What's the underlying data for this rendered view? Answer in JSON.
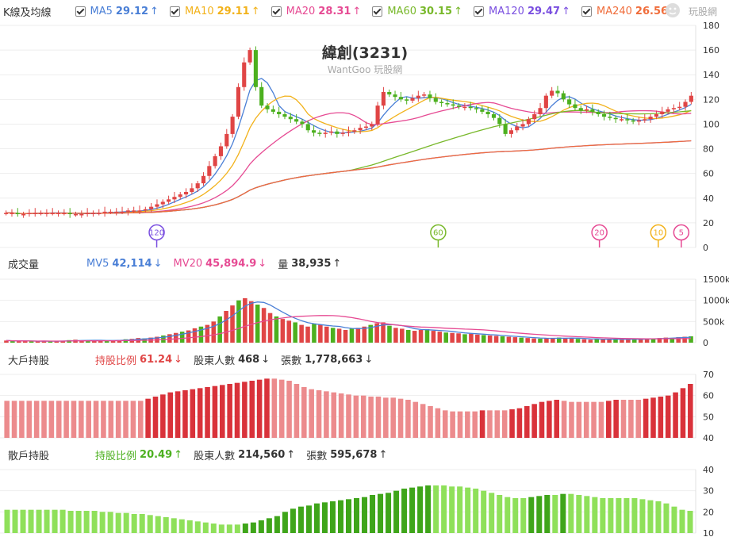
{
  "kline": {
    "label": "K線及均線",
    "ma": [
      {
        "name": "MA5",
        "value": "29.12",
        "arrow": "↑",
        "color": "#4a7fd6"
      },
      {
        "name": "MA10",
        "value": "29.11",
        "arrow": "↑",
        "color": "#f2b21b"
      },
      {
        "name": "MA20",
        "value": "28.31",
        "arrow": "↑",
        "color": "#e64a93"
      },
      {
        "name": "MA60",
        "value": "30.15",
        "arrow": "↑",
        "color": "#78b82a"
      },
      {
        "name": "MA120",
        "value": "29.47",
        "arrow": "↑",
        "color": "#7a4fe0"
      },
      {
        "name": "MA240",
        "value": "26.56",
        "arrow": "↑",
        "color": "#f06d3b"
      }
    ]
  },
  "logo_text": "玩股網",
  "volume": {
    "label": "成交量",
    "items": [
      {
        "name": "MV5",
        "value": "42,114",
        "arrow": "↓",
        "color": "#4a7fd6"
      },
      {
        "name": "MV20",
        "value": "45,894.9",
        "arrow": "↓",
        "color": "#e64a93"
      },
      {
        "name": "量",
        "value": "38,935",
        "arrow": "↑",
        "color": "#333333"
      }
    ]
  },
  "big": {
    "label": "大戶持股",
    "items": [
      {
        "name": "持股比例",
        "value": "61.24",
        "arrow": "↓",
        "color": "#e04545"
      },
      {
        "name": "股東人數",
        "value": "468",
        "arrow": "↓",
        "color": "#333333"
      },
      {
        "name": "張數",
        "value": "1,778,663",
        "arrow": "↓",
        "color": "#333333"
      }
    ]
  },
  "small": {
    "label": "散戶持股",
    "items": [
      {
        "name": "持股比例",
        "value": "20.49",
        "arrow": "↑",
        "color": "#4cb01f"
      },
      {
        "name": "股東人數",
        "value": "214,560",
        "arrow": "↑",
        "color": "#333333"
      },
      {
        "name": "張數",
        "value": "595,678",
        "arrow": "↑",
        "color": "#333333"
      }
    ]
  },
  "chart_data": [
    {
      "type": "candlestick",
      "title": "緯創(3231)",
      "subtitle": "WantGoo 玩股網",
      "ylim": [
        0,
        180
      ],
      "yticks": [
        "0",
        "20",
        "40",
        "60",
        "80",
        "100",
        "120",
        "140",
        "160",
        "180"
      ],
      "close_series": [
        28,
        28,
        27,
        27,
        28,
        28,
        28,
        28,
        28,
        28,
        28,
        27,
        27,
        27,
        28,
        28,
        28,
        29,
        29,
        29,
        29,
        30,
        30,
        30,
        31,
        33,
        35,
        37,
        39,
        41,
        43,
        45,
        48,
        52,
        58,
        66,
        74,
        82,
        92,
        106,
        130,
        150,
        160,
        130,
        115,
        112,
        110,
        108,
        106,
        104,
        102,
        100,
        95,
        93,
        92,
        93,
        94,
        92,
        93,
        94,
        95,
        97,
        98,
        100,
        115,
        126,
        124,
        122,
        120,
        119,
        121,
        123,
        124,
        121,
        118,
        117,
        116,
        115,
        114,
        114,
        113,
        112,
        110,
        108,
        105,
        100,
        92,
        95,
        98,
        100,
        104,
        108,
        113,
        123,
        127,
        125,
        120,
        116,
        113,
        111,
        112,
        110,
        108,
        106,
        105,
        104,
        104,
        103,
        102,
        103,
        104,
        106,
        108,
        110,
        112,
        113,
        114,
        118,
        123
      ],
      "markers": [
        {
          "label": "120",
          "color": "#7a4fe0",
          "index": 60
        },
        {
          "label": "60",
          "color": "#78b82a",
          "index": 170
        },
        {
          "label": "20",
          "color": "#e64a93",
          "index": 233
        },
        {
          "label": "10",
          "color": "#f2b21b",
          "index": 256
        },
        {
          "label": "5",
          "color": "#e64a93",
          "index": 265
        }
      ]
    },
    {
      "type": "bar",
      "name": "volume",
      "ylim": [
        0,
        1500000
      ],
      "yticks": [
        "0",
        "500k",
        "1000k",
        "1500k"
      ],
      "values": [
        50,
        40,
        35,
        40,
        30,
        35,
        45,
        30,
        40,
        35,
        60,
        70,
        50,
        45,
        55,
        60,
        45,
        50,
        65,
        80,
        90,
        110,
        100,
        120,
        140,
        170,
        200,
        230,
        260,
        290,
        340,
        380,
        420,
        500,
        620,
        750,
        880,
        1000,
        1050,
        980,
        900,
        820,
        700,
        620,
        560,
        520,
        480,
        420,
        380,
        440,
        420,
        380,
        350,
        330,
        300,
        330,
        350,
        380,
        420,
        460,
        480,
        400,
        350,
        330,
        300,
        280,
        300,
        320,
        280,
        260,
        240,
        230,
        220,
        200,
        210,
        190,
        180,
        170,
        160,
        150,
        140,
        130,
        120,
        110,
        100,
        95,
        100,
        110,
        120,
        100,
        110,
        90,
        80,
        70,
        90,
        80,
        85,
        75,
        70,
        80,
        90,
        85,
        95,
        100,
        110,
        120,
        110,
        130,
        140,
        150
      ]
    },
    {
      "type": "bar",
      "name": "大戶持股比例",
      "ylim": [
        40,
        70
      ],
      "yticks": [
        "40",
        "50",
        "60",
        "70"
      ],
      "values": [
        57.5,
        57.5,
        57.5,
        57.5,
        57.5,
        57.5,
        57.5,
        57.5,
        57.5,
        57.5,
        57.5,
        57.5,
        57.5,
        57.5,
        57.5,
        57.5,
        57.5,
        57.5,
        57.5,
        58.5,
        59.5,
        60.5,
        61.5,
        62,
        62.5,
        63,
        63.5,
        64,
        64.5,
        65,
        65.5,
        66,
        66.5,
        67,
        67.5,
        68,
        68,
        67.5,
        67,
        65.5,
        64,
        63,
        62.5,
        62,
        61.5,
        61,
        60.5,
        60,
        60,
        59.5,
        59.5,
        59,
        59,
        58.5,
        58,
        57,
        56,
        55,
        54,
        53,
        52.5,
        52.5,
        52.5,
        52.5,
        53,
        53,
        53,
        53,
        53.5,
        54,
        55,
        56,
        57,
        57.5,
        58,
        57.5,
        57,
        57,
        57,
        57,
        57,
        57.5,
        58,
        58,
        58,
        58,
        58.5,
        59,
        59.5,
        60,
        61.5,
        63.5,
        65.5
      ]
    },
    {
      "type": "bar",
      "name": "散戶持股比例",
      "ylim": [
        10,
        40
      ],
      "yticks": [
        "10",
        "20",
        "30",
        "40"
      ],
      "values": [
        21,
        21,
        21,
        21,
        21,
        21,
        21,
        21,
        20.5,
        20.5,
        20.5,
        20.5,
        20,
        20,
        19.5,
        19.5,
        19,
        19,
        18.5,
        18,
        17.5,
        17,
        16.5,
        16,
        15.5,
        15,
        14.5,
        14,
        14,
        14,
        14.5,
        15,
        16,
        17,
        18,
        20,
        21.5,
        22.5,
        23,
        24,
        24.5,
        25,
        25.5,
        26,
        26.5,
        27,
        28,
        28.5,
        29,
        30,
        31,
        31.5,
        32,
        32.5,
        32.5,
        32.5,
        32,
        32,
        31.5,
        31,
        30,
        29,
        28,
        27,
        26.5,
        26.5,
        27,
        27.5,
        28,
        28,
        28.5,
        28.5,
        28,
        27.5,
        27,
        26.5,
        26.5,
        26.5,
        26.5,
        26.5,
        26,
        25.5,
        25,
        24,
        22.5,
        21,
        20.5
      ]
    }
  ]
}
